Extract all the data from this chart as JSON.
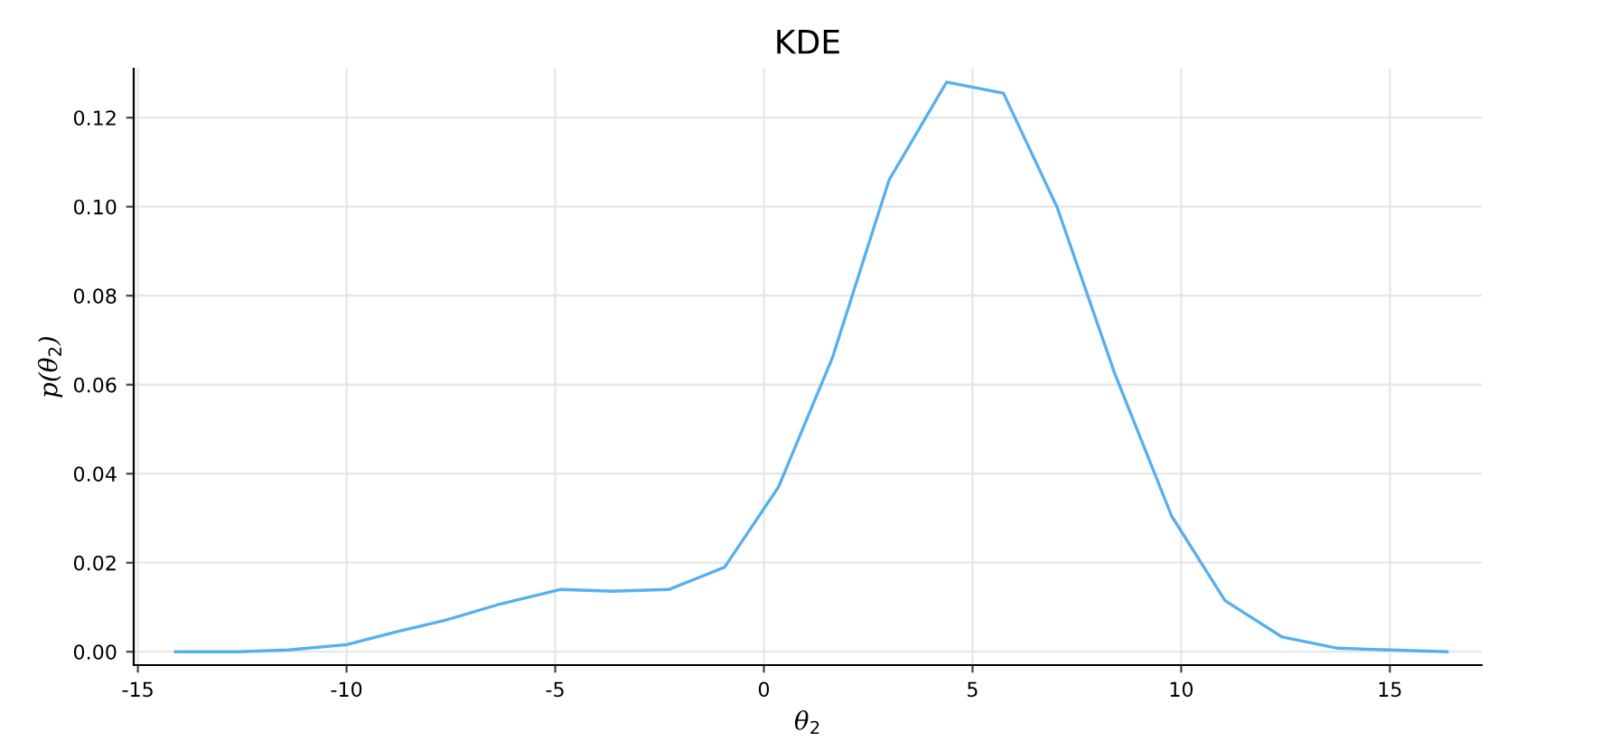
{
  "chart_data": {
    "type": "line",
    "title": "KDE",
    "xlabel": "θ$_{2}$",
    "ylabel": "p(θ$_{2}$)",
    "x": [
      -14.1,
      -12.6,
      -11.4,
      -10.0,
      -8.8,
      -7.66,
      -6.33,
      -4.88,
      -3.63,
      -2.27,
      -0.94,
      0.35,
      1.64,
      3.0,
      4.38,
      5.74,
      7.03,
      8.4,
      9.77,
      11.05,
      12.42,
      13.75,
      15.0,
      16.37
    ],
    "series": [
      {
        "color": "#56b0f0",
        "values": [
          0.0,
          0.0,
          0.0004,
          0.0016,
          0.0045,
          0.007,
          0.0107,
          0.014,
          0.0136,
          0.014,
          0.019,
          0.037,
          0.066,
          0.106,
          0.128,
          0.1255,
          0.0998,
          0.0627,
          0.0305,
          0.0115,
          0.0033,
          0.0008,
          0.0004,
          0.0
        ]
      }
    ],
    "xlim": [
      -15.1,
      17.2
    ],
    "xticks": [
      -15,
      -10,
      -5,
      0,
      5,
      10,
      15
    ],
    "ylim": [
      -0.003,
      0.131
    ],
    "yticks": [
      {
        "value": 0,
        "label": "0.00"
      },
      {
        "value": 0.02,
        "label": "0.02"
      },
      {
        "value": 0.04,
        "label": "0.04"
      },
      {
        "value": 0.06,
        "label": "0.06"
      },
      {
        "value": 0.08,
        "label": "0.08"
      },
      {
        "value": 0.1,
        "label": "0.10"
      },
      {
        "value": 0.12,
        "label": "0.12"
      }
    ],
    "grid": true,
    "line_style": "solid"
  }
}
